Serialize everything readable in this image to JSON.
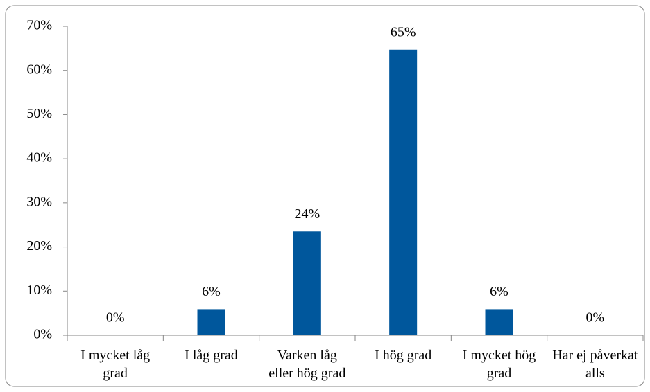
{
  "chart_data": {
    "type": "bar",
    "categories": [
      "I mycket låg grad",
      "I låg grad",
      "Varken låg eller hög grad",
      "I hög grad",
      "I mycket hög grad",
      "Har ej påverkat alls"
    ],
    "values": [
      0,
      5.9,
      23.5,
      64.7,
      5.9,
      0
    ],
    "value_labels": [
      "0%",
      "6%",
      "24%",
      "65%",
      "6%",
      "0%"
    ],
    "color": "#00579c",
    "ylim": [
      0,
      70
    ],
    "yticks": [
      {
        "value": 0,
        "label": "0%"
      },
      {
        "value": 10,
        "label": "10%"
      },
      {
        "value": 20,
        "label": "20%"
      },
      {
        "value": 30,
        "label": "30%"
      },
      {
        "value": 40,
        "label": "40%"
      },
      {
        "value": 50,
        "label": "50%"
      },
      {
        "value": 60,
        "label": "60%"
      },
      {
        "value": 70,
        "label": "70%"
      }
    ],
    "grid": false
  }
}
